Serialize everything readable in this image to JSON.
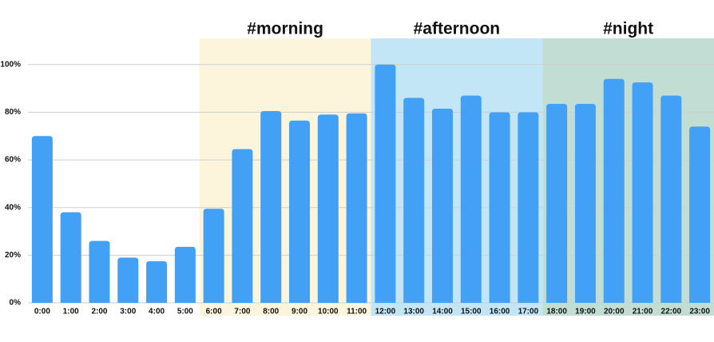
{
  "chart_data": {
    "type": "bar",
    "categories": [
      "0:00",
      "1:00",
      "2:00",
      "3:00",
      "4:00",
      "5:00",
      "6:00",
      "7:00",
      "8:00",
      "9:00",
      "10:00",
      "11:00",
      "12:00",
      "13:00",
      "14:00",
      "15:00",
      "16:00",
      "17:00",
      "18:00",
      "19:00",
      "20:00",
      "21:00",
      "22:00",
      "23:00"
    ],
    "values": [
      70,
      38,
      26,
      19,
      17.5,
      23.5,
      39.5,
      64.5,
      80.5,
      76.5,
      79,
      79.5,
      100,
      86,
      81.5,
      87,
      80,
      80,
      83.5,
      83.5,
      94,
      92.5,
      87,
      74
    ],
    "color": "#42a0f5",
    "ylim": [
      0,
      111
    ],
    "yticks": [
      {
        "value": 0,
        "label": "0%"
      },
      {
        "value": 20,
        "label": "20%"
      },
      {
        "value": 40,
        "label": "40%"
      },
      {
        "value": 60,
        "label": "60%"
      },
      {
        "value": 80,
        "label": "80%"
      },
      {
        "value": 100,
        "label": "100%"
      }
    ],
    "grid": true,
    "regions": [
      {
        "label": "#morning",
        "from": "6:00",
        "to": "11:00",
        "color": "#fdf4dc"
      },
      {
        "label": "#afternoon",
        "from": "12:00",
        "to": "17:00",
        "color": "#c3e6f6"
      },
      {
        "label": "#night",
        "from": "18:00",
        "to": "23:00",
        "color": "#c2ddd3"
      }
    ]
  }
}
